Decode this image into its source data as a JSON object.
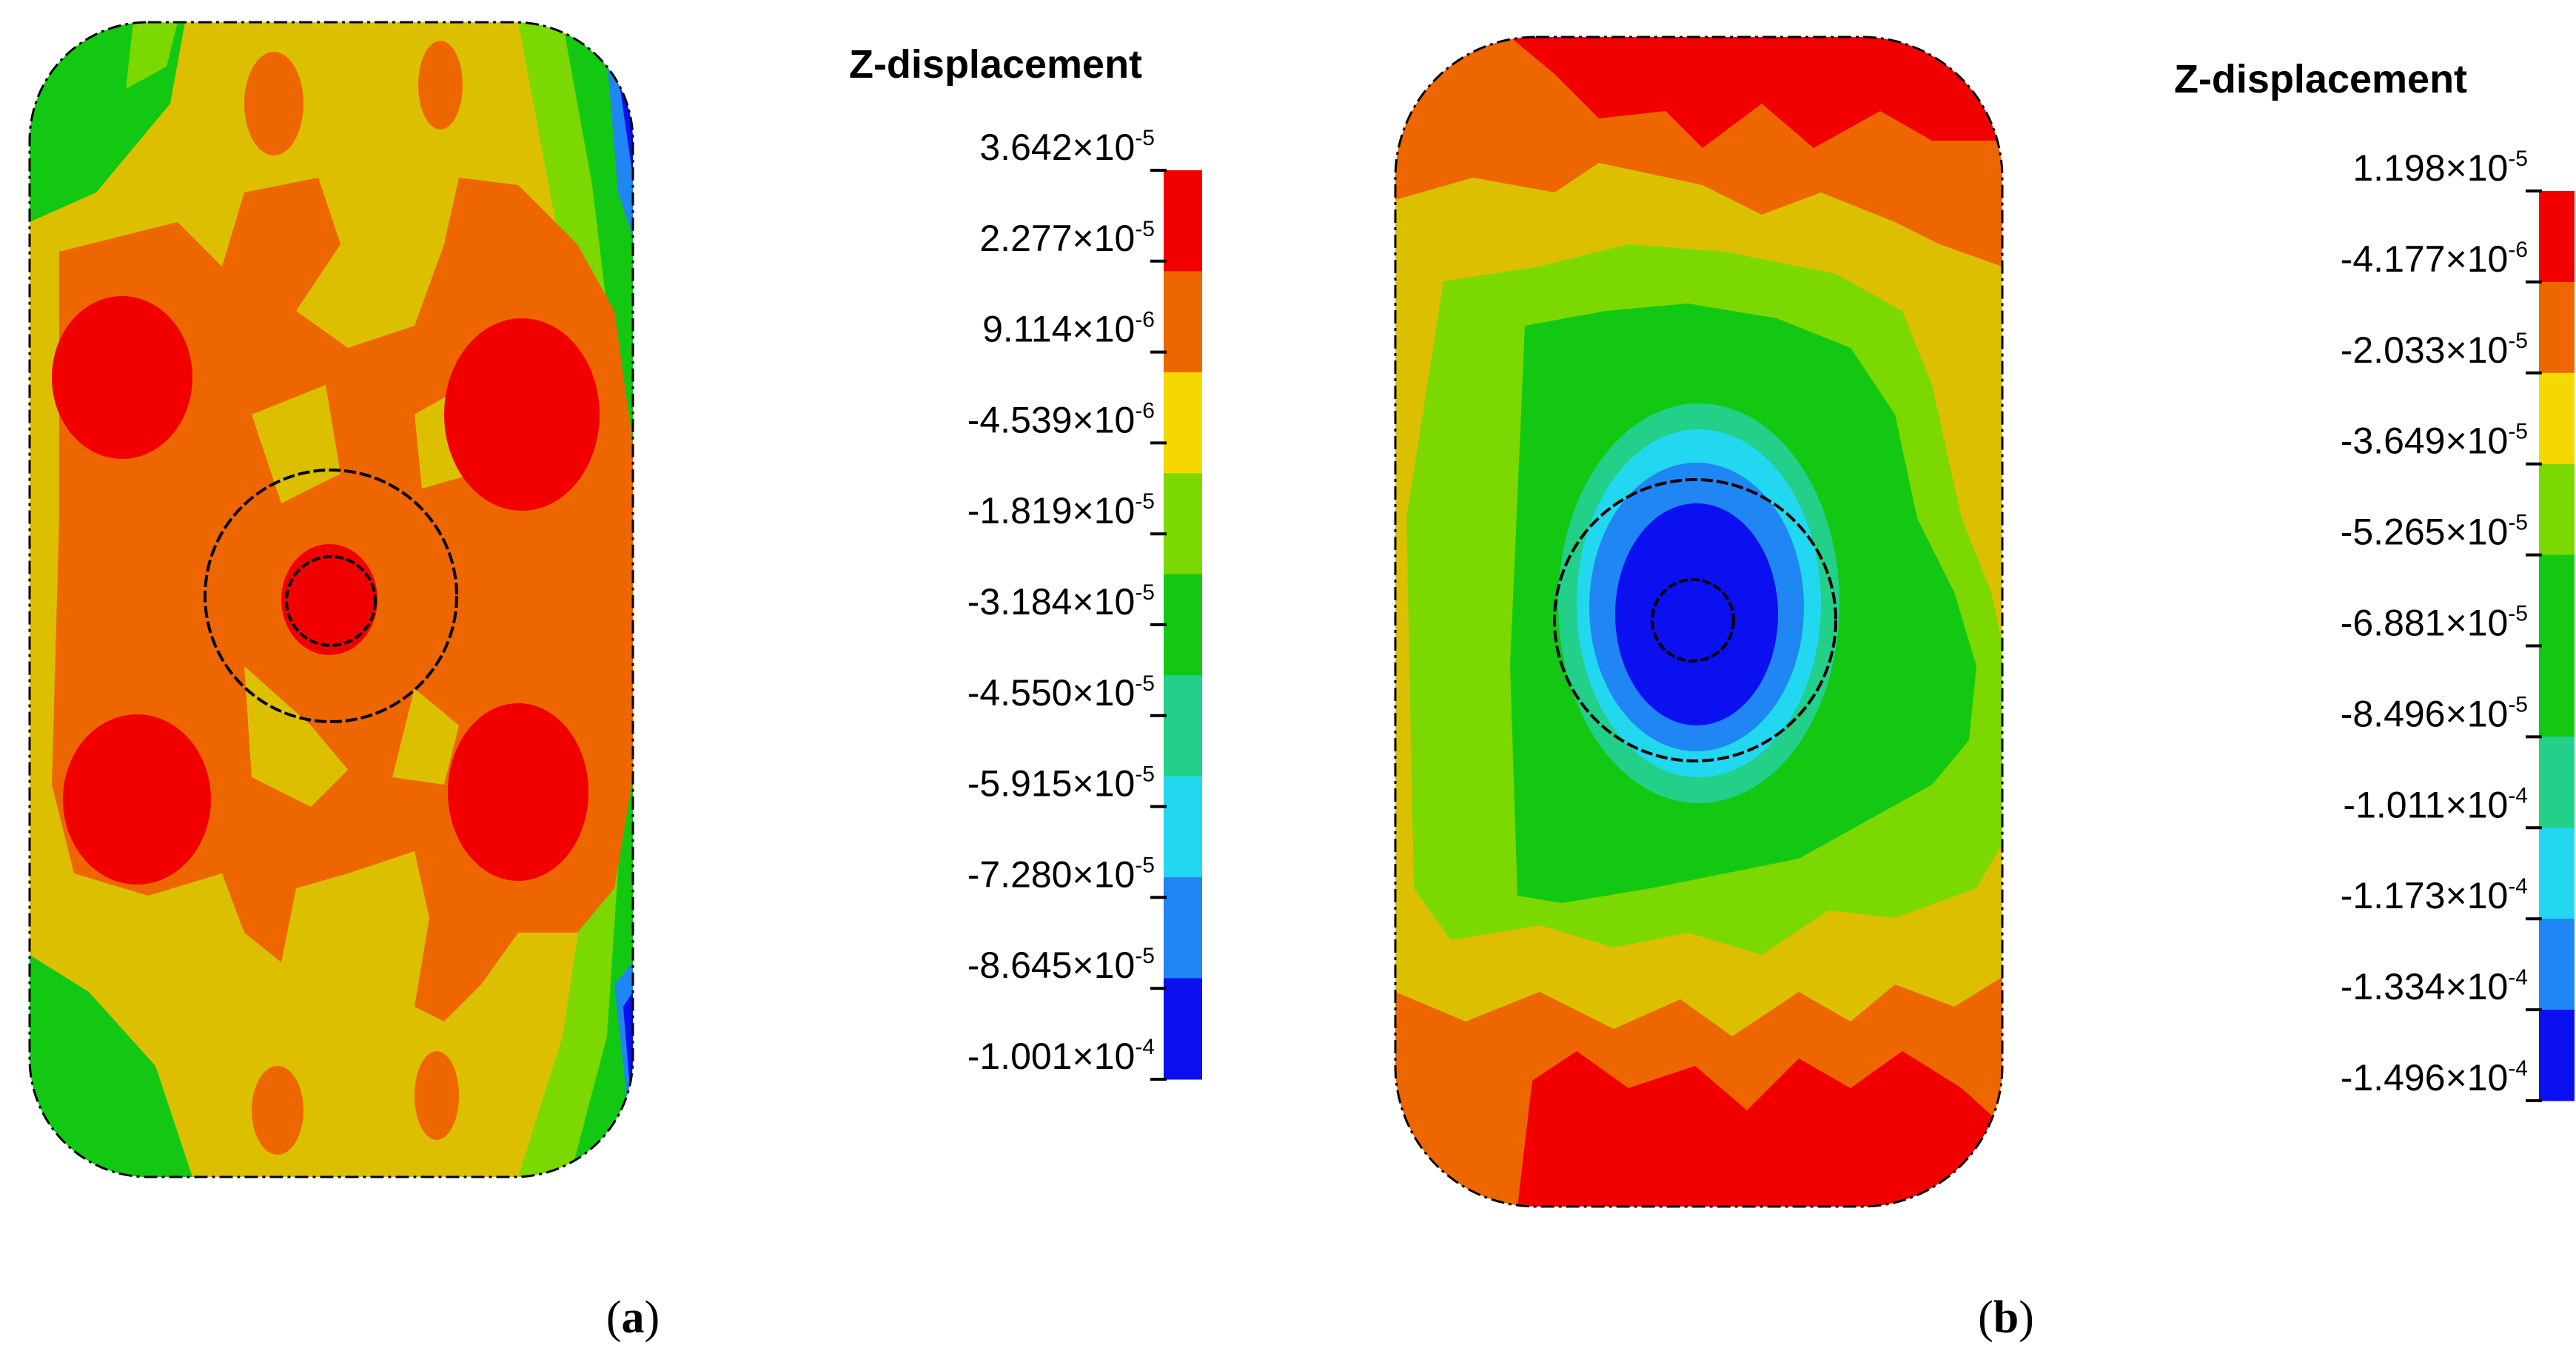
{
  "chart_data": [
    {
      "type": "heatmap",
      "panel": "a",
      "caption_letter": "a",
      "colorbar_title": "Z-displacement",
      "tick_labels": [
        {
          "mantissa": "3.642",
          "exponent": "-5"
        },
        {
          "mantissa": "2.277",
          "exponent": "-5"
        },
        {
          "mantissa": "9.114",
          "exponent": "-6"
        },
        {
          "mantissa": "-4.539",
          "exponent": "-6"
        },
        {
          "mantissa": "-1.819",
          "exponent": "-5"
        },
        {
          "mantissa": "-3.184",
          "exponent": "-5"
        },
        {
          "mantissa": "-4.550",
          "exponent": "-5"
        },
        {
          "mantissa": "-5.915",
          "exponent": "-5"
        },
        {
          "mantissa": "-7.280",
          "exponent": "-5"
        },
        {
          "mantissa": "-8.645",
          "exponent": "-5"
        },
        {
          "mantissa": "-1.001",
          "exponent": "-4"
        }
      ],
      "colors": [
        "#f20000",
        "#ee6600",
        "#f5d800",
        "#7bd800",
        "#13c813",
        "#22d08a",
        "#22d8f0",
        "#1f86f3",
        "#0a10f0"
      ],
      "value_range": [
        -0.0001001,
        3.642e-05
      ],
      "description_words": "four red lobes around central red spot, edges green-blue on right"
    },
    {
      "type": "heatmap",
      "panel": "b",
      "caption_letter": "b",
      "colorbar_title": "Z-displacement",
      "tick_labels": [
        {
          "mantissa": "1.198",
          "exponent": "-5"
        },
        {
          "mantissa": "-4.177",
          "exponent": "-6"
        },
        {
          "mantissa": "-2.033",
          "exponent": "-5"
        },
        {
          "mantissa": "-3.649",
          "exponent": "-5"
        },
        {
          "mantissa": "-5.265",
          "exponent": "-5"
        },
        {
          "mantissa": "-6.881",
          "exponent": "-5"
        },
        {
          "mantissa": "-8.496",
          "exponent": "-5"
        },
        {
          "mantissa": "-1.011",
          "exponent": "-4"
        },
        {
          "mantissa": "-1.173",
          "exponent": "-4"
        },
        {
          "mantissa": "-1.334",
          "exponent": "-4"
        },
        {
          "mantissa": "-1.496",
          "exponent": "-4"
        }
      ],
      "colors": [
        "#f20000",
        "#ee6600",
        "#f5d800",
        "#7bd800",
        "#13c813",
        "#13c813",
        "#22d08a",
        "#22d8f0",
        "#1f86f3",
        "#0a10f0"
      ],
      "value_range": [
        -0.0001496,
        1.198e-05
      ],
      "description_words": "red top and bottom bands, blue minimum at centre"
    }
  ],
  "times_symbol": "×",
  "base": "10",
  "palette": {
    "red": "#f20000",
    "orange": "#ee6600",
    "yellow": "#dcc000",
    "ygreen": "#7bd800",
    "green": "#13c813",
    "teal": "#22d08a",
    "cyan": "#22d8f0",
    "lblue": "#1f86f3",
    "blue": "#0a10f0"
  }
}
